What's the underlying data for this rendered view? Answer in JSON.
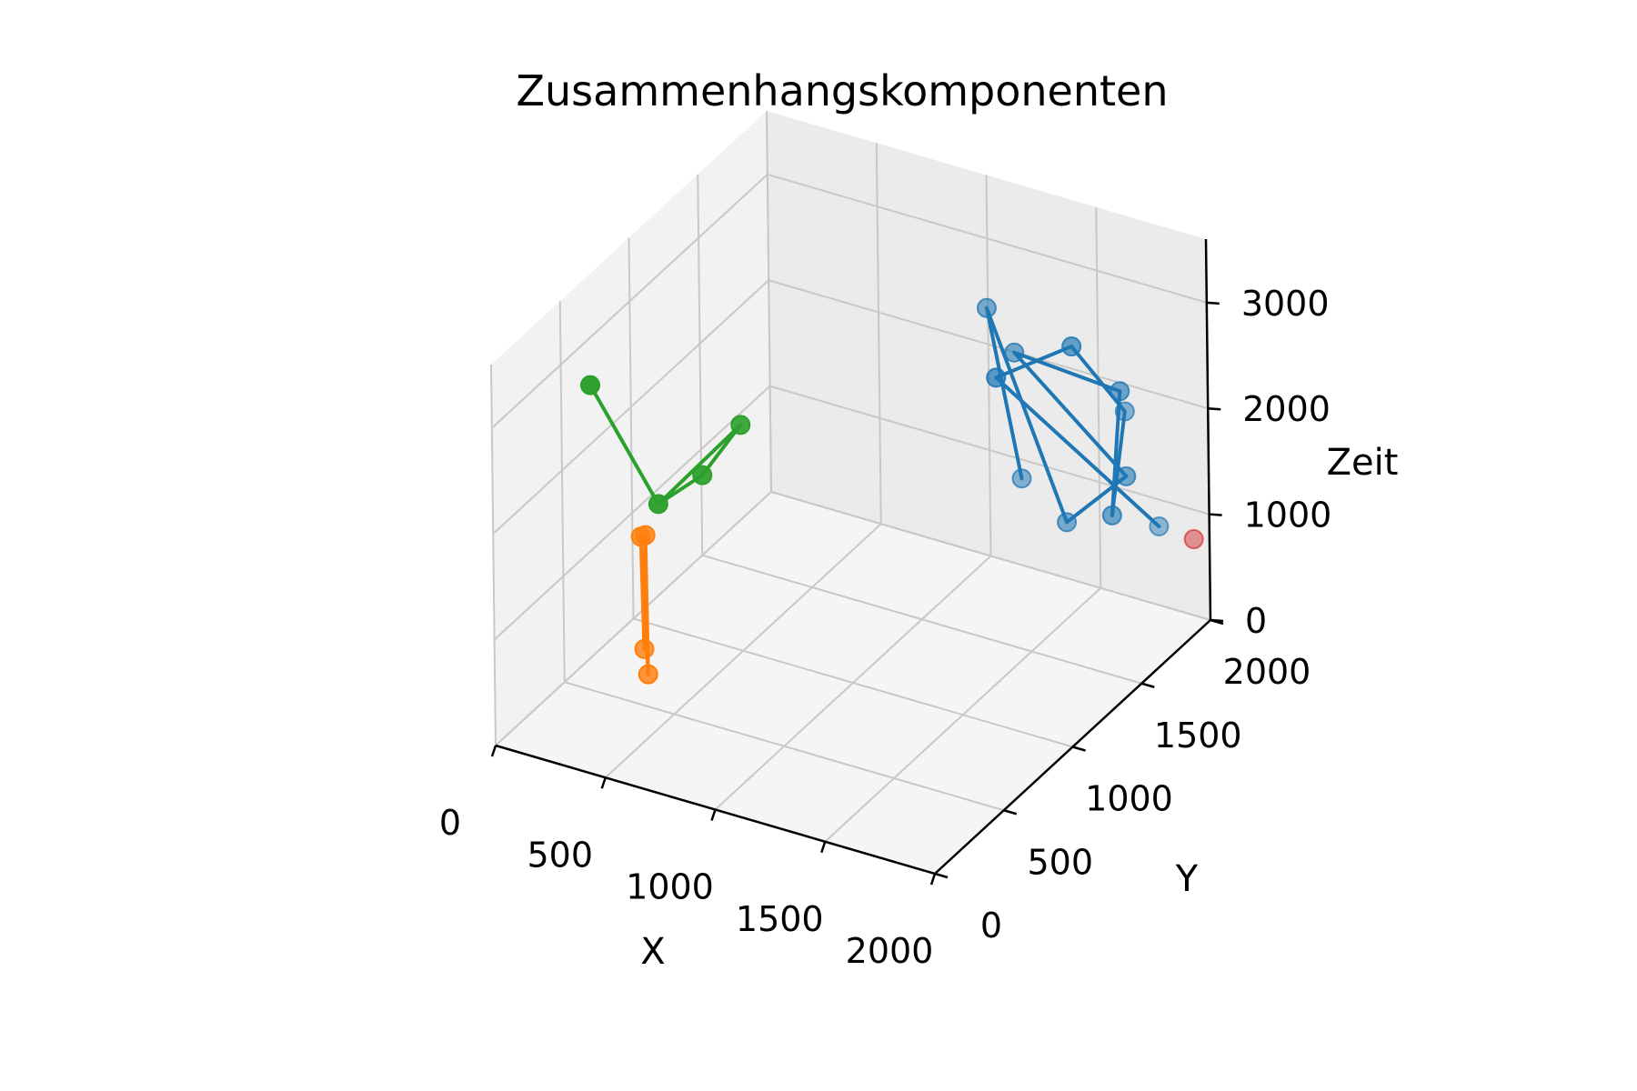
{
  "chart_data": {
    "type": "scatter",
    "projection": "3d",
    "title": "Zusammenhangskomponenten",
    "xlabel": "X",
    "ylabel": "Y",
    "zlabel": "Zeit",
    "xlim": [
      0,
      2000
    ],
    "ylim": [
      0,
      2000
    ],
    "zlim": [
      0,
      3600
    ],
    "xticks": [
      0,
      500,
      1000,
      1500,
      2000
    ],
    "yticks": [
      0,
      500,
      1000,
      1500,
      2000
    ],
    "zticks": [
      0,
      1000,
      2000,
      3000
    ],
    "grid": true,
    "series": [
      {
        "color": "#1f77b4",
        "points": [
          {
            "x": 1870,
            "y": 1230,
            "z": 3430
          },
          {
            "x": 1670,
            "y": 1000,
            "z": 3290
          },
          {
            "x": 1760,
            "y": 1780,
            "z": 2090
          },
          {
            "x": 1840,
            "y": 1890,
            "z": 920
          },
          {
            "x": 1970,
            "y": 1350,
            "z": 1750
          },
          {
            "x": 1980,
            "y": 1400,
            "z": 2870
          },
          {
            "x": 1430,
            "y": 1510,
            "z": 2770
          },
          {
            "x": 1960,
            "y": 1470,
            "z": 1970
          },
          {
            "x": 1610,
            "y": 1590,
            "z": 1180
          },
          {
            "x": 1300,
            "y": 1520,
            "z": 3100
          },
          {
            "x": 1330,
            "y": 1710,
            "z": 1280
          }
        ],
        "edges": [
          [
            0,
            1
          ],
          [
            0,
            2
          ],
          [
            1,
            3
          ],
          [
            2,
            4
          ],
          [
            4,
            5
          ],
          [
            5,
            6
          ],
          [
            6,
            7
          ],
          [
            7,
            8
          ],
          [
            8,
            9
          ],
          [
            9,
            10
          ]
        ]
      },
      {
        "color": "#ff7f0e",
        "points": [
          {
            "x": 280,
            "y": 620,
            "z": 1400
          },
          {
            "x": 250,
            "y": 700,
            "z": 1300
          },
          {
            "x": 220,
            "y": 730,
            "z": 170
          },
          {
            "x": 300,
            "y": 630,
            "z": 100
          }
        ],
        "edges": [
          [
            0,
            2
          ],
          [
            2,
            1
          ],
          [
            1,
            3
          ],
          [
            3,
            0
          ]
        ]
      },
      {
        "color": "#2ca02c",
        "points": [
          {
            "x": 420,
            "y": 50,
            "z": 3600
          },
          {
            "x": 680,
            "y": 120,
            "z": 2550
          },
          {
            "x": 800,
            "y": 250,
            "z": 2740
          },
          {
            "x": 920,
            "y": 340,
            "z": 3180
          }
        ],
        "edges": [
          [
            0,
            1
          ],
          [
            1,
            2
          ],
          [
            2,
            3
          ],
          [
            3,
            1
          ]
        ]
      },
      {
        "color": "#d62728",
        "points": [
          {
            "x": 1960,
            "y": 1950,
            "z": 800
          }
        ],
        "edges": []
      }
    ]
  }
}
